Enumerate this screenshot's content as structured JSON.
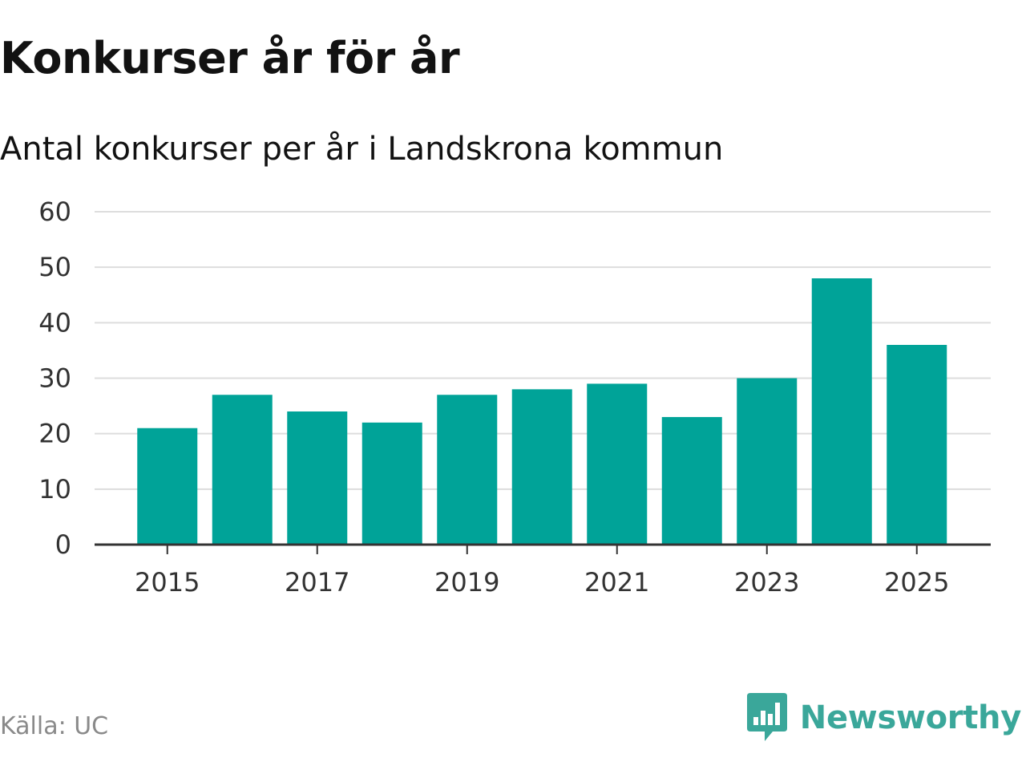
{
  "header": {
    "title": "Konkurser år för år",
    "subtitle": "Antal konkurser per år i Landskrona kommun"
  },
  "footer": {
    "source": "Källa: UC",
    "brand": "Newsworthy"
  },
  "colors": {
    "bar": "#00a398",
    "grid": "#dddddd",
    "axis": "#333333",
    "tick_text": "#333333",
    "brand": "#3aa79a"
  },
  "chart_data": {
    "type": "bar",
    "title": "Konkurser år för år",
    "subtitle": "Antal konkurser per år i Landskrona kommun",
    "xlabel": "",
    "ylabel": "",
    "categories": [
      "2015",
      "2016",
      "2017",
      "2018",
      "2019",
      "2020",
      "2021",
      "2022",
      "2023",
      "2024",
      "2025"
    ],
    "values": [
      21,
      27,
      24,
      22,
      27,
      28,
      29,
      23,
      30,
      48,
      36
    ],
    "x_tick_labels": [
      "2015",
      "2017",
      "2019",
      "2021",
      "2023",
      "2025"
    ],
    "y_tick_labels": [
      "0",
      "10",
      "20",
      "30",
      "40",
      "50",
      "60"
    ],
    "ylim": [
      0,
      60
    ],
    "grid": true,
    "legend": "none"
  }
}
